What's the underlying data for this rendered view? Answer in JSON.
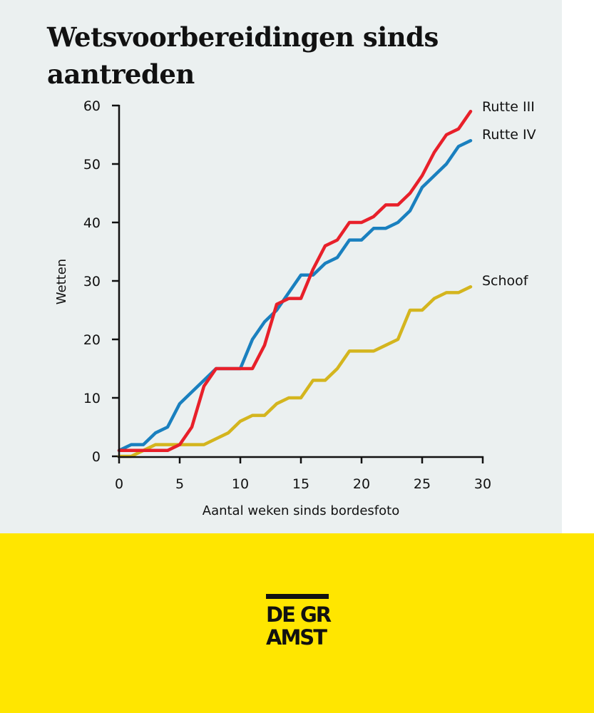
{
  "title": "Wetsvoorbereidingen sinds aantreden",
  "logo": {
    "line1": "DE GR",
    "line2": "AMST"
  },
  "chart_data": {
    "type": "line",
    "title": "Wetsvoorbereidingen sinds aantreden",
    "xlabel": "Aantal weken sinds bordesfoto",
    "ylabel": "Wetten",
    "xlim": [
      0,
      30
    ],
    "ylim": [
      0,
      60
    ],
    "xticks": [
      0,
      5,
      10,
      15,
      20,
      25,
      30
    ],
    "yticks": [
      0,
      10,
      20,
      30,
      40,
      50,
      60
    ],
    "grid": false,
    "x": [
      0,
      1,
      2,
      3,
      4,
      5,
      6,
      7,
      8,
      9,
      10,
      11,
      12,
      13,
      14,
      15,
      16,
      17,
      18,
      19,
      20,
      21,
      22,
      23,
      24,
      25,
      26,
      27,
      28,
      29
    ],
    "series": [
      {
        "name": "Rutte III",
        "color": "#e8202a",
        "values": [
          1,
          1,
          1,
          1,
          1,
          2,
          5,
          12,
          15,
          15,
          15,
          15,
          19,
          26,
          27,
          27,
          32,
          36,
          37,
          40,
          40,
          41,
          43,
          43,
          45,
          48,
          52,
          55,
          56,
          59
        ]
      },
      {
        "name": "Rutte IV",
        "color": "#1a80bf",
        "values": [
          1,
          2,
          2,
          4,
          5,
          9,
          11,
          13,
          15,
          15,
          15,
          20,
          23,
          25,
          28,
          31,
          31,
          33,
          34,
          37,
          37,
          39,
          39,
          40,
          42,
          46,
          48,
          50,
          53,
          54
        ]
      },
      {
        "name": "Schoof",
        "color": "#d4b51e",
        "values": [
          0,
          0,
          1,
          2,
          2,
          2,
          2,
          2,
          3,
          4,
          6,
          7,
          7,
          9,
          10,
          10,
          13,
          13,
          15,
          18,
          18,
          18,
          19,
          20,
          25,
          25,
          27,
          28,
          28,
          29
        ]
      }
    ]
  }
}
